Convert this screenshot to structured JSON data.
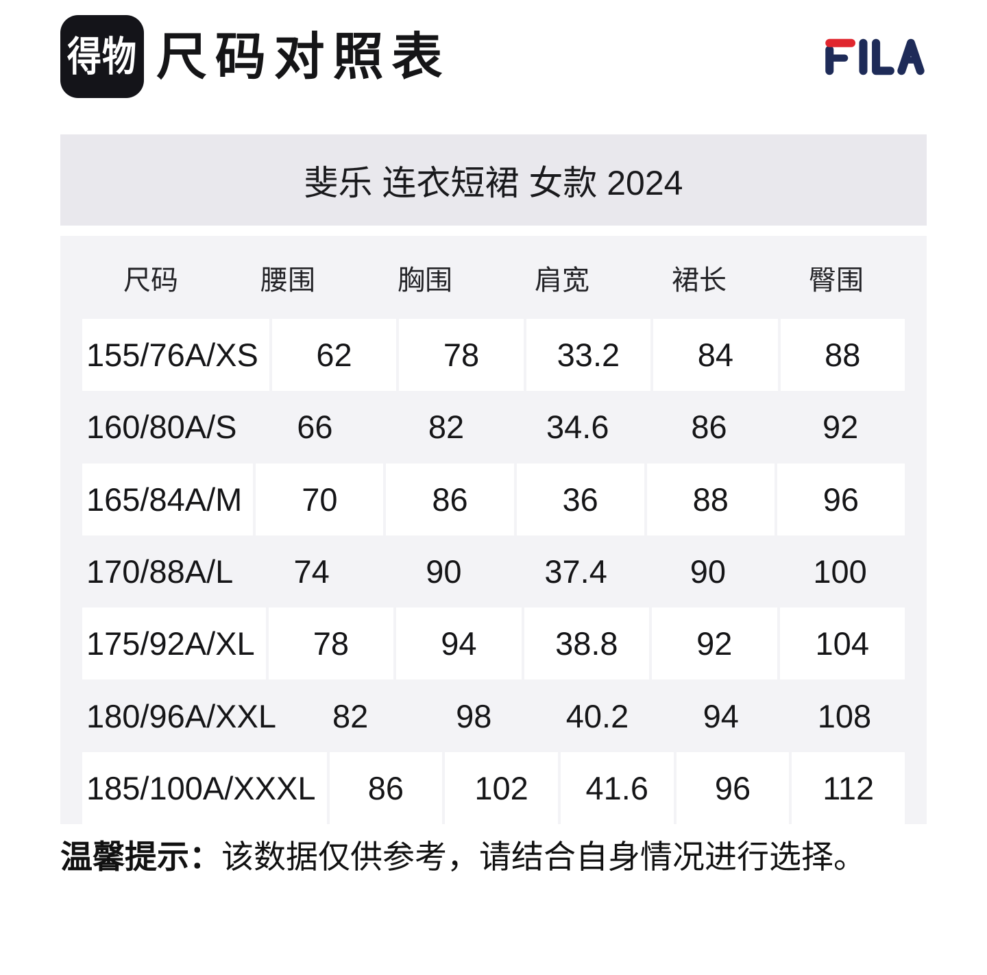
{
  "header": {
    "app_logo_text": "得物",
    "page_title": "尺码对照表",
    "brand_logo": "FILA"
  },
  "product_banner": {
    "title": "斐乐 连衣短裙 女款 2024"
  },
  "size_table": {
    "columns": [
      "尺码",
      "腰围",
      "胸围",
      "肩宽",
      "裙长",
      "臀围"
    ],
    "rows": [
      {
        "size": "155/76A/XS",
        "values": [
          "62",
          "78",
          "33.2",
          "84",
          "88"
        ]
      },
      {
        "size": "160/80A/S",
        "values": [
          "66",
          "82",
          "34.6",
          "86",
          "92"
        ]
      },
      {
        "size": "165/84A/M",
        "values": [
          "70",
          "86",
          "36",
          "88",
          "96"
        ]
      },
      {
        "size": "170/88A/L",
        "values": [
          "74",
          "90",
          "37.4",
          "90",
          "100"
        ]
      },
      {
        "size": "175/92A/XL",
        "values": [
          "78",
          "94",
          "38.8",
          "92",
          "104"
        ]
      },
      {
        "size": "180/96A/XXL",
        "values": [
          "82",
          "98",
          "40.2",
          "94",
          "108"
        ]
      },
      {
        "size": "185/100A/XXXL",
        "values": [
          "86",
          "102",
          "41.6",
          "96",
          "112"
        ]
      }
    ]
  },
  "footer": {
    "notice_label": "温馨提示：",
    "notice_text": "该数据仅供参考，请结合自身情况进行选择。"
  },
  "colors": {
    "banner_bg": "#e9e8ed",
    "panel_bg": "#f3f3f6",
    "cell_bg": "#ffffff",
    "logo_bg": "#141419",
    "text_primary": "#151517",
    "header_text": "#232327",
    "fila_navy": "#1e2b58",
    "fila_red": "#e0262e"
  }
}
